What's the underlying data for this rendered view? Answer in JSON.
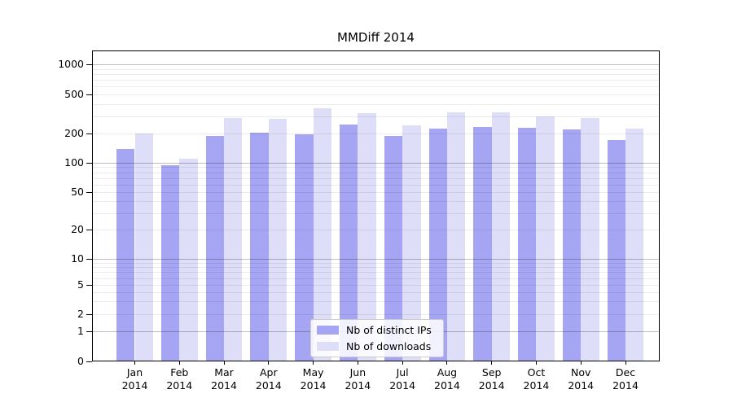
{
  "chart_data": {
    "type": "bar",
    "title": "MMDiff 2014",
    "categories": [
      "Jan 2014",
      "Feb 2014",
      "Mar 2014",
      "Apr 2014",
      "May 2014",
      "Jun 2014",
      "Jul 2014",
      "Aug 2014",
      "Sep 2014",
      "Oct 2014",
      "Nov 2014",
      "Dec 2014"
    ],
    "series": [
      {
        "name": "Nb of distinct IPs",
        "color": "#a5a5f3",
        "values": [
          140,
          95,
          190,
          205,
          195,
          245,
          190,
          225,
          235,
          230,
          220,
          170
        ]
      },
      {
        "name": "Nb of downloads",
        "color": "#dedef9",
        "values": [
          200,
          110,
          290,
          280,
          360,
          320,
          240,
          330,
          330,
          300,
          290,
          225
        ]
      }
    ],
    "yscale": "symlog",
    "y_ticks": [
      0,
      1,
      2,
      5,
      10,
      20,
      50,
      100,
      200,
      500,
      1000
    ],
    "ylim": [
      0,
      1400
    ],
    "xlabel": "",
    "ylabel": "",
    "grid": true,
    "legend_position": "lower-center-inside"
  },
  "colors": {
    "background": "#ffffff",
    "axis": "#000000",
    "grid_major": "rgba(0,0,0,0.26)",
    "grid_minor": "rgba(0,0,0,0.08)",
    "bar_distinct_ips": "#a5a5f3",
    "bar_downloads": "#dedef9"
  }
}
